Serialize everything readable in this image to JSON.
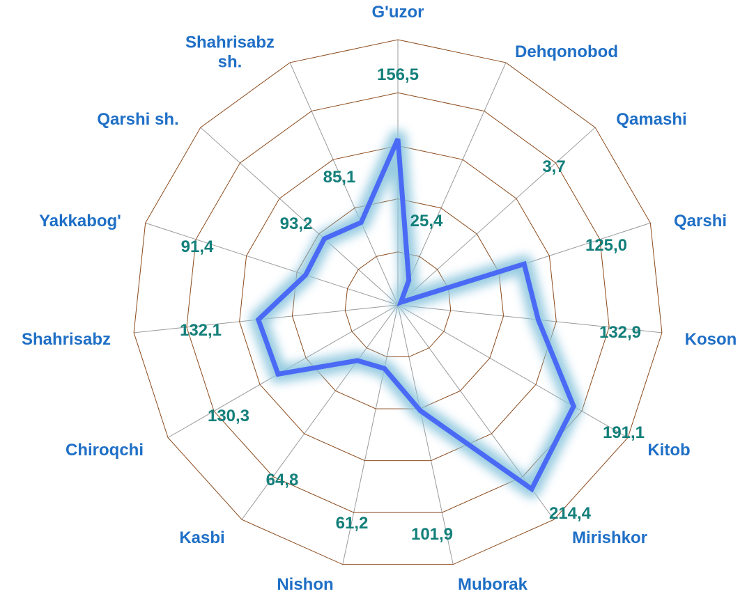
{
  "chart_data": {
    "type": "radar",
    "categories": [
      "G'uzor",
      "Dehqonobod",
      "Qamashi",
      "Qarshi",
      "Koson",
      "Kitob",
      "Mirishkor",
      "Muborak",
      "Nishon",
      "Kasbi",
      "Chiroqchi",
      "Shahrisabz",
      "Yakkabog'",
      "Qarshi sh.",
      "Shahrisabz sh."
    ],
    "values": [
      156.5,
      25.4,
      3.7,
      125.0,
      132.9,
      191.1,
      214.4,
      101.9,
      61.2,
      64.8,
      130.3,
      132.1,
      91.4,
      93.2,
      85.1
    ],
    "value_labels": [
      "156,5",
      "25,4",
      "3,7",
      "125,0",
      "132,9",
      "191,1",
      "214,4",
      "101,9",
      "61,2",
      "64,8",
      "130,3",
      "132,1",
      "91,4",
      "93,2",
      "85,1"
    ],
    "color": "#4a6af5",
    "rlim": [
      0,
      250
    ],
    "rticks": [
      50,
      100,
      150,
      200,
      250
    ],
    "grid": true
  }
}
